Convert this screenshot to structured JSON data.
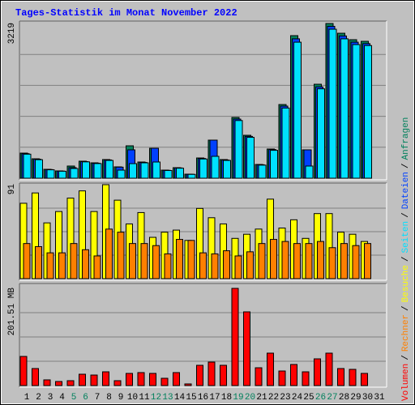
{
  "legend_separator": "/",
  "chart_data": [
    {
      "type": "bar",
      "title": "Tages-Statistik im Monat November 2022",
      "ylim": [
        0,
        3219
      ],
      "yticks": [
        3219
      ],
      "series": [
        {
          "name": "Anfragen",
          "color": "#00805c",
          "values": [
            522,
            404,
            185,
            152,
            253,
            354,
            320,
            388,
            236,
            674,
            337,
            623,
            168,
            219,
            84,
            421,
            792,
            388,
            1264,
            893,
            286,
            607,
            1533,
            2966,
            590,
            1955,
            3219,
            3016,
            2882,
            2848,
            null
          ]
        },
        {
          "name": "Dateien",
          "color": "#0040ff",
          "values": [
            510,
            395,
            180,
            148,
            220,
            345,
            312,
            380,
            230,
            590,
            328,
            623,
            164,
            214,
            82,
            410,
            792,
            378,
            1230,
            870,
            280,
            595,
            1500,
            2900,
            590,
            1900,
            3160,
            2960,
            2830,
            2800,
            null
          ]
        },
        {
          "name": "Seiten",
          "color": "#00e0ff",
          "values": [
            500,
            385,
            175,
            145,
            202,
            340,
            305,
            370,
            168,
            303,
            320,
            337,
            160,
            208,
            80,
            400,
            455,
            370,
            1200,
            850,
            272,
            580,
            1460,
            2830,
            253,
            1860,
            3100,
            2900,
            2780,
            2760,
            null
          ]
        }
      ]
    },
    {
      "type": "bar",
      "ylim": [
        0,
        91
      ],
      "yticks": [
        91
      ],
      "series": [
        {
          "name": "Besuche",
          "color": "#ffff00",
          "values": [
            73,
            83,
            54,
            65,
            78,
            85,
            65,
            91,
            76,
            53,
            64,
            40,
            45,
            47,
            37,
            68,
            59,
            53,
            39,
            43,
            48,
            77,
            49,
            57,
            39,
            63,
            63,
            45,
            43,
            36,
            null
          ]
        },
        {
          "name": "Rechner",
          "color": "#ff8000",
          "values": [
            34,
            31,
            25,
            25,
            34,
            28,
            22,
            48,
            45,
            34,
            34,
            32,
            24,
            38,
            37,
            25,
            24,
            27,
            22,
            26,
            34,
            38,
            36,
            34,
            34,
            36,
            30,
            34,
            32,
            34,
            null
          ]
        }
      ]
    },
    {
      "type": "bar",
      "ylim": [
        0,
        201.51
      ],
      "yticks": [
        {
          "value": 201.51,
          "label": "201.51 MB"
        }
      ],
      "categories": [
        "1",
        "2",
        "3",
        "4",
        "5",
        "6",
        "7",
        "8",
        "9",
        "10",
        "11",
        "12",
        "13",
        "14",
        "15",
        "16",
        "17",
        "18",
        "19",
        "20",
        "21",
        "22",
        "23",
        "24",
        "25",
        "26",
        "27",
        "28",
        "29",
        "30",
        "31"
      ],
      "category_colors": [
        "#000000",
        "#000000",
        "#000000",
        "#000000",
        "#00805c",
        "#00805c",
        "#000000",
        "#000000",
        "#000000",
        "#000000",
        "#000000",
        "#00805c",
        "#00805c",
        "#000000",
        "#000000",
        "#000000",
        "#000000",
        "#000000",
        "#00805c",
        "#00805c",
        "#000000",
        "#000000",
        "#000000",
        "#000000",
        "#000000",
        "#00805c",
        "#00805c",
        "#000000",
        "#000000",
        "#000000",
        "#000000"
      ],
      "series": [
        {
          "name": "Volumen",
          "color": "#ff0000",
          "values": [
            60.4,
            35.3,
            11.8,
            8.4,
            10.1,
            23.5,
            21.8,
            28.5,
            10.1,
            25.2,
            26.9,
            25.2,
            15.1,
            26.9,
            3.4,
            42.0,
            48.7,
            42.0,
            201.51,
            152.8,
            36.9,
            67.2,
            30.2,
            43.7,
            28.5,
            55.4,
            67.2,
            35.3,
            33.6,
            25.2,
            null
          ]
        }
      ]
    }
  ]
}
